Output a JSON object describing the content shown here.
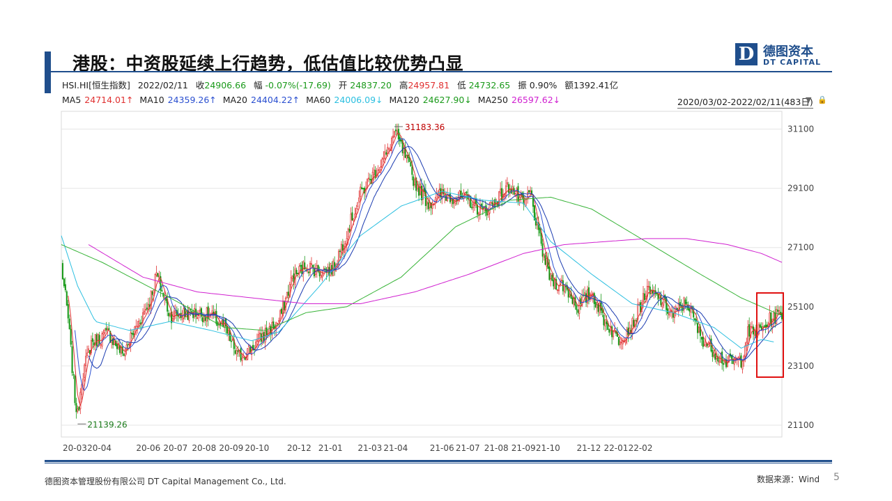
{
  "slide": {
    "title": "港股：中资股延续上行趋势，低估值比较优势凸显",
    "footer_left": "德图资本管理股份有限公司 DT Capital Management Co., Ltd.",
    "footer_right": "数据来源：Wind",
    "page_number": "5",
    "logo_cn": "德图资本",
    "logo_en": "DT CAPITAL",
    "logo_letter": "D"
  },
  "quote": {
    "code": "HSI.HI[恒生指数]",
    "date": "2022/02/11",
    "close_label": "收",
    "close": "24906.66",
    "chg_label": "幅",
    "chg": "-0.07%(-17.69)",
    "open_label": "开",
    "open": "24837.20",
    "high_label": "高",
    "high": "24957.81",
    "low_label": "低",
    "low": "24732.65",
    "amp_label": "振",
    "amp": "0.90%",
    "amt_label": "额",
    "amt": "1392.41亿"
  },
  "ma": {
    "ma5_label": "MA5",
    "ma5": "24714.01↑",
    "ma10_label": "MA10",
    "ma10": "24359.26↑",
    "ma20_label": "MA20",
    "ma20": "24404.22↑",
    "ma60_label": "MA60",
    "ma60": "24006.09↓",
    "ma120_label": "MA120",
    "ma120": "24627.90↓",
    "ma250_label": "MA250",
    "ma250": "26597.62↓"
  },
  "range": "2020/03/02-2022/02/11(483日)",
  "colors": {
    "brand": "#1f4e8c",
    "up": "#e03030",
    "down": "#1a9a1a",
    "ma5": "#e03030",
    "ma10": "#2a4fd0",
    "ma20": "#2a4fd0",
    "ma60": "#2bbfe0",
    "ma120": "#36b336",
    "ma250": "#d020d0",
    "highlight": "#e01010"
  },
  "chart_data": {
    "type": "candlestick",
    "ylim": [
      20700,
      31700
    ],
    "yticks": [
      31100,
      29100,
      27100,
      25100,
      23100,
      21100
    ],
    "xticks": [
      "20-03",
      "20-04",
      "20-06",
      "20-07",
      "20-08",
      "20-09",
      "20-10",
      "20-12",
      "21-01",
      "21-03",
      "21-04",
      "21-06",
      "21-07",
      "21-08",
      "21-09",
      "21-10",
      "21-12",
      "22-01",
      "22-02"
    ],
    "annotations": [
      {
        "label": "31183.36",
        "value": 31183.36,
        "kind": "high"
      },
      {
        "label": "21139.26",
        "value": 21139.26,
        "kind": "low"
      }
    ],
    "close_path": [
      [
        0,
        26500
      ],
      [
        5,
        24700
      ],
      [
        10,
        22000
      ],
      [
        12,
        21400
      ],
      [
        15,
        22700
      ],
      [
        22,
        23900
      ],
      [
        35,
        24200
      ],
      [
        45,
        23500
      ],
      [
        55,
        24400
      ],
      [
        65,
        25300
      ],
      [
        70,
        26200
      ],
      [
        80,
        24800
      ],
      [
        95,
        24900
      ],
      [
        110,
        24800
      ],
      [
        120,
        24400
      ],
      [
        130,
        23400
      ],
      [
        140,
        23700
      ],
      [
        150,
        24200
      ],
      [
        160,
        24600
      ],
      [
        170,
        26100
      ],
      [
        180,
        26500
      ],
      [
        190,
        26300
      ],
      [
        200,
        26400
      ],
      [
        210,
        27600
      ],
      [
        220,
        28900
      ],
      [
        230,
        29600
      ],
      [
        240,
        30300
      ],
      [
        245,
        31000
      ],
      [
        250,
        30500
      ],
      [
        260,
        29300
      ],
      [
        270,
        28600
      ],
      [
        280,
        28900
      ],
      [
        290,
        28800
      ],
      [
        300,
        28700
      ],
      [
        310,
        28300
      ],
      [
        320,
        28700
      ],
      [
        330,
        29200
      ],
      [
        340,
        28500
      ],
      [
        345,
        29000
      ],
      [
        350,
        27700
      ],
      [
        355,
        26800
      ],
      [
        360,
        26000
      ],
      [
        370,
        25800
      ],
      [
        380,
        25100
      ],
      [
        390,
        25600
      ],
      [
        400,
        24600
      ],
      [
        410,
        24000
      ],
      [
        420,
        24500
      ],
      [
        430,
        25600
      ],
      [
        440,
        25400
      ],
      [
        450,
        24800
      ],
      [
        460,
        25300
      ],
      [
        470,
        24100
      ],
      [
        480,
        23600
      ],
      [
        490,
        23200
      ],
      [
        500,
        23300
      ],
      [
        505,
        24200
      ],
      [
        515,
        24300
      ],
      [
        522,
        24700
      ],
      [
        530,
        24900
      ]
    ],
    "ma_paths": {
      "ma60": [
        [
          0,
          27500
        ],
        [
          12,
          25800
        ],
        [
          25,
          24600
        ],
        [
          50,
          24300
        ],
        [
          80,
          24600
        ],
        [
          110,
          24300
        ],
        [
          140,
          23950
        ],
        [
          160,
          24250
        ],
        [
          190,
          25800
        ],
        [
          220,
          27500
        ],
        [
          250,
          28500
        ],
        [
          280,
          29000
        ],
        [
          310,
          28700
        ],
        [
          340,
          28600
        ],
        [
          360,
          27300
        ],
        [
          390,
          26200
        ],
        [
          420,
          25200
        ],
        [
          450,
          24900
        ],
        [
          480,
          24400
        ],
        [
          500,
          23700
        ],
        [
          515,
          24000
        ],
        [
          525,
          23900
        ]
      ],
      "ma120": [
        [
          0,
          27200
        ],
        [
          30,
          26600
        ],
        [
          80,
          25400
        ],
        [
          120,
          24400
        ],
        [
          150,
          24300
        ],
        [
          180,
          24900
        ],
        [
          210,
          25100
        ],
        [
          250,
          26100
        ],
        [
          290,
          27800
        ],
        [
          330,
          28700
        ],
        [
          360,
          28800
        ],
        [
          390,
          28400
        ],
        [
          430,
          27300
        ],
        [
          470,
          26200
        ],
        [
          500,
          25400
        ],
        [
          520,
          25000
        ],
        [
          530,
          24800
        ]
      ],
      "ma250": [
        [
          20,
          27200
        ],
        [
          60,
          26100
        ],
        [
          100,
          25600
        ],
        [
          140,
          25400
        ],
        [
          180,
          25200
        ],
        [
          220,
          25200
        ],
        [
          260,
          25600
        ],
        [
          300,
          26200
        ],
        [
          340,
          26900
        ],
        [
          370,
          27200
        ],
        [
          400,
          27300
        ],
        [
          430,
          27400
        ],
        [
          460,
          27400
        ],
        [
          490,
          27200
        ],
        [
          515,
          26900
        ],
        [
          530,
          26600
        ]
      ]
    }
  }
}
